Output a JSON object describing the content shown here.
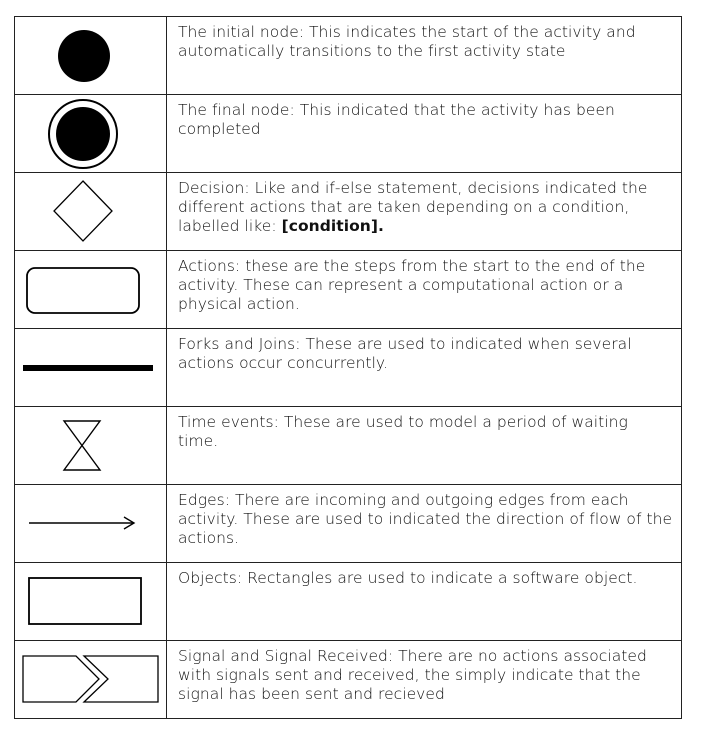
{
  "rows": [
    {
      "symbol": "initial-node",
      "text": "The initial node: This indicates the start of the activity and automatically transitions to the first activity state"
    },
    {
      "symbol": "final-node",
      "text": "The final node: This indicated that the activity has been completed"
    },
    {
      "symbol": "decision",
      "text": "Decision: Like and if-else statement, decisions indicated the different actions that are taken depending on a condition, labelled like: ",
      "bold": "[condition]."
    },
    {
      "symbol": "action",
      "text": "Actions: these are the steps from the start to the end of the activity. These can represent a computational action or a physical action."
    },
    {
      "symbol": "fork-join",
      "text": "Forks and Joins: These are used to indicated when several actions occur concurrently."
    },
    {
      "symbol": "time-event",
      "text": "Time events: These are used to model a period of waiting time."
    },
    {
      "symbol": "edge",
      "text": "Edges: There are incoming and outgoing edges from each activity. These are used to indicated the direction of flow of the actions."
    },
    {
      "symbol": "object",
      "text": "Objects: Rectangles are used to indicate a software object."
    },
    {
      "symbol": "signal",
      "text": "Signal and Signal Received: There are no actions associated with signals sent and received, the simply indicate that the signal has been sent and recieved"
    }
  ]
}
